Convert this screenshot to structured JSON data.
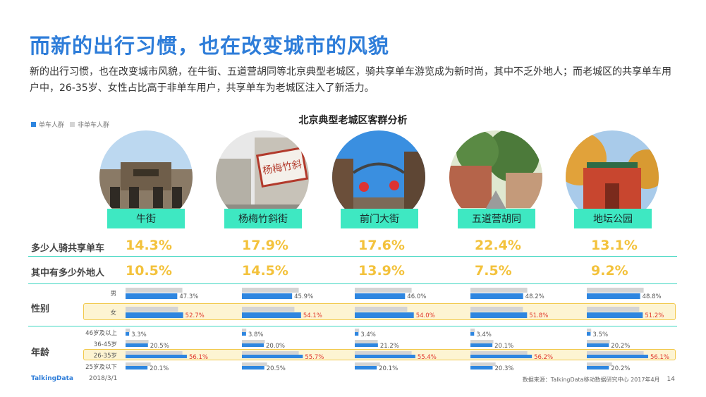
{
  "title": "而新的出行习惯，也在改变城市的风貌",
  "description": "新的出行习惯，也在改变城市风貌，在牛街、五道营胡同等北京典型老城区，骑共享单车游览成为新时尚，其中不乏外地人；而老城区的共享单车用户中，26-35岁、女性占比高于非单车用户，共享单车为老城区注入了新活力。",
  "legend": {
    "bike": "单车人群",
    "nonbike": "非单车人群"
  },
  "colors": {
    "bike": "#2e86e0",
    "nonbike": "#d4d4d4",
    "highlight_text": "#e0372b",
    "accent": "#3ee8c2",
    "value": "#f3c23c"
  },
  "rows": {
    "share": "多少人骑共享单车",
    "outsiders": "其中有多少外地人",
    "gender": "性别",
    "age": "年龄"
  },
  "gender_labels": [
    "男",
    "女"
  ],
  "age_labels": [
    "46岁及以上",
    "36-45岁",
    "26-35岁",
    "25岁及以下"
  ],
  "footer": {
    "brand": "TalkingData",
    "date": "2018/3/1",
    "source": "数据来源：TalkingData移动数据研究中心 2017年4月",
    "page": "14"
  },
  "chart_data": {
    "type": "bar",
    "title": "北京典型老城区客群分析",
    "categories": [
      "牛街",
      "杨梅竹斜街",
      "前门大街",
      "五道营胡同",
      "地坛公园"
    ],
    "share_riding": [
      "14.3%",
      "17.9%",
      "17.6%",
      "22.4%",
      "13.1%"
    ],
    "outsider_share": [
      "10.5%",
      "14.5%",
      "13.9%",
      "7.5%",
      "9.2%"
    ],
    "gender": {
      "bike": {
        "男": [
          47.3,
          45.9,
          46.0,
          48.2,
          48.8
        ],
        "女": [
          52.7,
          54.1,
          54.0,
          51.8,
          51.2
        ]
      },
      "nonbike": {
        "男": [
          52.0,
          52.0,
          52.0,
          52.0,
          52.0
        ],
        "女": [
          48.0,
          48.0,
          48.0,
          48.0,
          48.0
        ]
      }
    },
    "age": {
      "bike": {
        "46岁及以上": [
          3.3,
          3.8,
          3.4,
          3.4,
          3.5
        ],
        "36-45岁": [
          20.5,
          20.0,
          21.2,
          20.1,
          20.2
        ],
        "26-35岁": [
          56.1,
          55.7,
          55.4,
          56.2,
          56.1
        ],
        "25岁及以下": [
          20.1,
          20.5,
          20.1,
          20.3,
          20.2
        ]
      },
      "nonbike": {
        "46岁及以上": [
          4.0,
          4.0,
          4.0,
          4.0,
          4.0
        ],
        "36-45岁": [
          21.0,
          21.0,
          21.0,
          21.0,
          21.0
        ],
        "26-35岁": [
          52.0,
          52.0,
          52.0,
          52.0,
          52.0
        ],
        "25岁及以下": [
          23.0,
          23.0,
          23.0,
          23.0,
          23.0
        ]
      }
    }
  }
}
